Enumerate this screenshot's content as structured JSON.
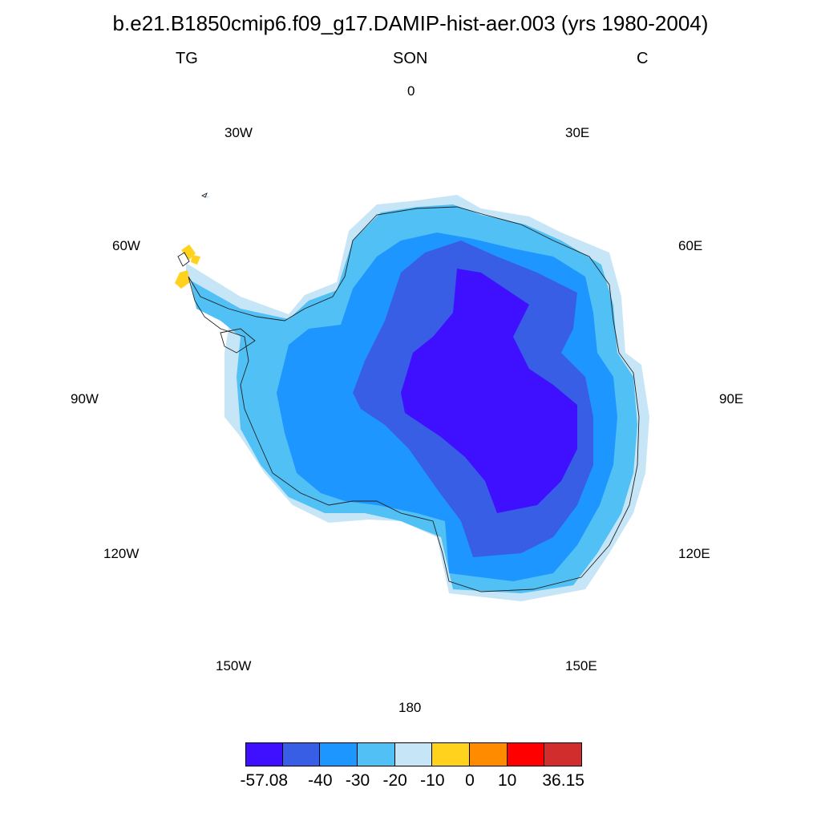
{
  "title": "b.e21.B1850cmip6.f09_g17.DAMIP-hist-aer.003 (yrs 1980-2004)",
  "subtitle_left": "TG",
  "subtitle_center": "SON",
  "subtitle_right": "C",
  "longitude_labels": {
    "l0": "0",
    "l30e": "30E",
    "l60e": "60E",
    "l90e": "90E",
    "l120e": "120E",
    "l150e": "150E",
    "l180": "180",
    "l150w": "150W",
    "l120w": "120W",
    "l90w": "90W",
    "l60w": "60W",
    "l30w": "30W"
  },
  "projection": "south polar stereographic",
  "colorbar": {
    "colors": [
      "#3f0fff",
      "#385ee6",
      "#1e96ff",
      "#51c0f5",
      "#c6e6f7",
      "#ffd21e",
      "#ff8c00",
      "#ff0000",
      "#d22d2d"
    ],
    "labels": [
      "-57.08",
      "-40",
      "-30",
      "-20",
      "-10",
      "0",
      "10",
      "36.15"
    ],
    "min": -57.08,
    "max": 36.15
  },
  "map_colors": {
    "level_1": "#3f0fff",
    "level_2": "#385ee6",
    "level_3": "#1e96ff",
    "level_4": "#51c0f5",
    "level_5": "#c6e6f7",
    "positive": "#ffd21e",
    "coastline": "#222222"
  }
}
